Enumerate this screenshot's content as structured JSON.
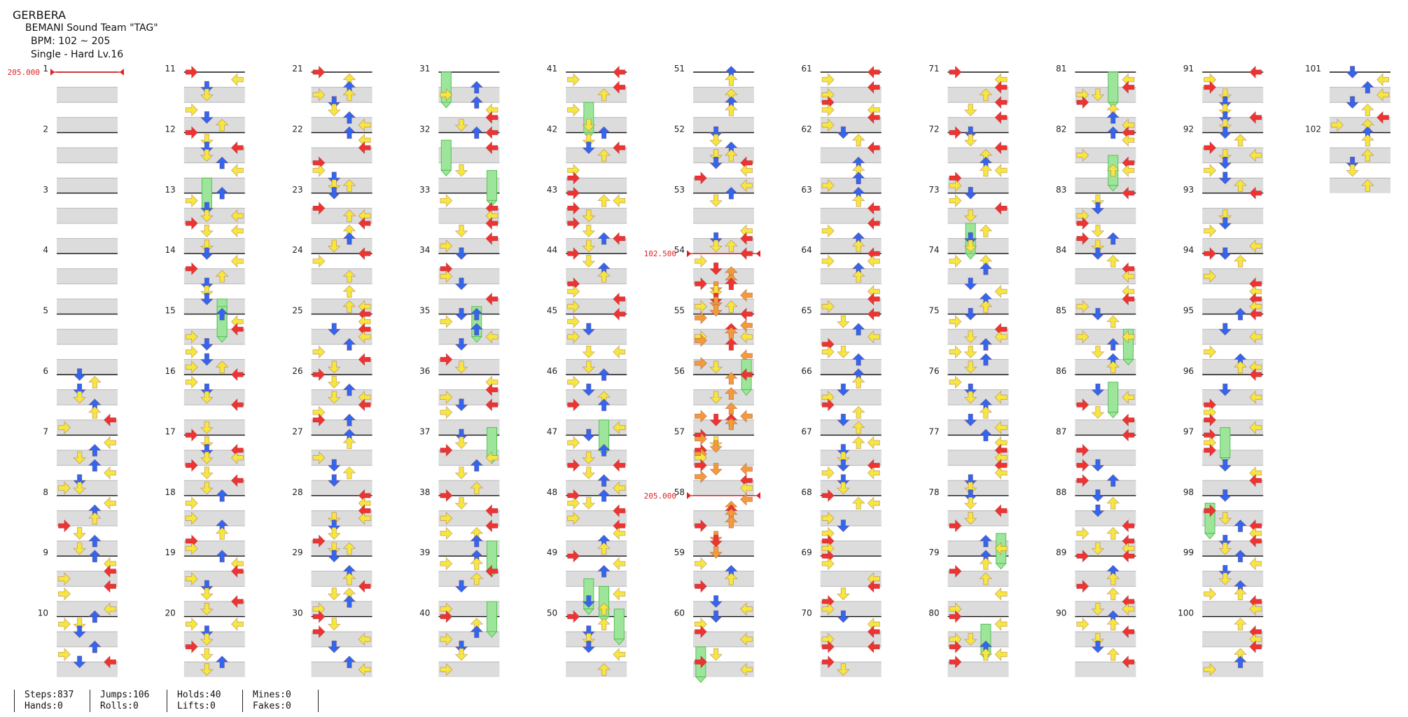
{
  "song": {
    "title": "GERBERA",
    "artist": "BEMANI Sound Team \"TAG\"",
    "bpm_line": "BPM: 102 ~ 205",
    "difficulty_line": "Single - Hard  Lv.16"
  },
  "measures": {
    "count": 102,
    "per_column": 10,
    "columns": 11,
    "labels_start": 1
  },
  "bpm_changes": [
    {
      "measure": 1,
      "beat": 0,
      "label": "205.000"
    },
    {
      "measure": 54,
      "beat": 0,
      "label": "102.500"
    },
    {
      "measure": 58,
      "beat": 0,
      "label": "205.000"
    }
  ],
  "colors": {
    "left_right_arrow": "#ee3333",
    "up_down_arrow": "#3366ee",
    "eighth_note": "#f5e642",
    "sixteenth_note": "#f39a3a",
    "triplet_note": "#b040e0",
    "hold_body": "#9de59a",
    "hold_stripe": "#58c057",
    "beat_band": "#dcdcdc",
    "bpm_marker": "#e02020"
  },
  "stats": {
    "steps": "Steps:837",
    "hands": "Hands:0",
    "jumps": "Jumps:106",
    "rolls": "Rolls:0",
    "holds": "Holds:40",
    "lifts": "Lifts:0",
    "mines": "Mines:0",
    "fakes": "Fakes:0"
  }
}
